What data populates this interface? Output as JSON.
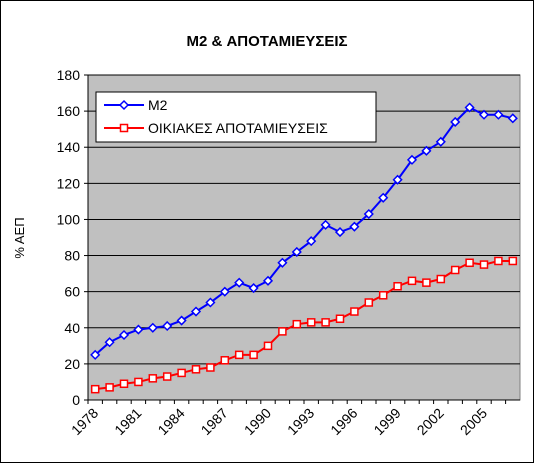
{
  "chart_data": {
    "type": "line",
    "title": "M2 & ΑΠΟΤΑΜΙΕΥΣΕΙΣ",
    "ylabel": "% ΑΕΠ",
    "categories": [
      "1978",
      null,
      null,
      "1981",
      null,
      null,
      "1984",
      null,
      null,
      "1987",
      null,
      null,
      "1990",
      null,
      null,
      "1993",
      null,
      null,
      "1996",
      null,
      null,
      "1999",
      null,
      null,
      "2002",
      null,
      null,
      "2005",
      null,
      null
    ],
    "series": [
      {
        "name": "M2",
        "color": "#0000ff",
        "marker": "diamond",
        "values": [
          25,
          32,
          36,
          39,
          40,
          41,
          44,
          49,
          54,
          60,
          65,
          62,
          66,
          76,
          82,
          88,
          97,
          93,
          96,
          103,
          112,
          122,
          133,
          138,
          143,
          154,
          162,
          158,
          158,
          156
        ]
      },
      {
        "name": "ΟΙΚΙΑΚΕΣ ΑΠΟΤΑΜΙΕΥΣΕΙΣ",
        "color": "#ff0000",
        "marker": "square",
        "values": [
          6,
          7,
          9,
          10,
          12,
          13,
          15,
          17,
          18,
          22,
          25,
          25,
          30,
          38,
          42,
          43,
          43,
          45,
          49,
          54,
          58,
          63,
          66,
          65,
          67,
          72,
          76,
          75,
          77,
          77
        ]
      }
    ],
    "ylim": [
      0,
      180
    ],
    "yticks": [
      0,
      20,
      40,
      60,
      80,
      100,
      120,
      140,
      160,
      180
    ],
    "grid": true,
    "legend": "upper left"
  }
}
